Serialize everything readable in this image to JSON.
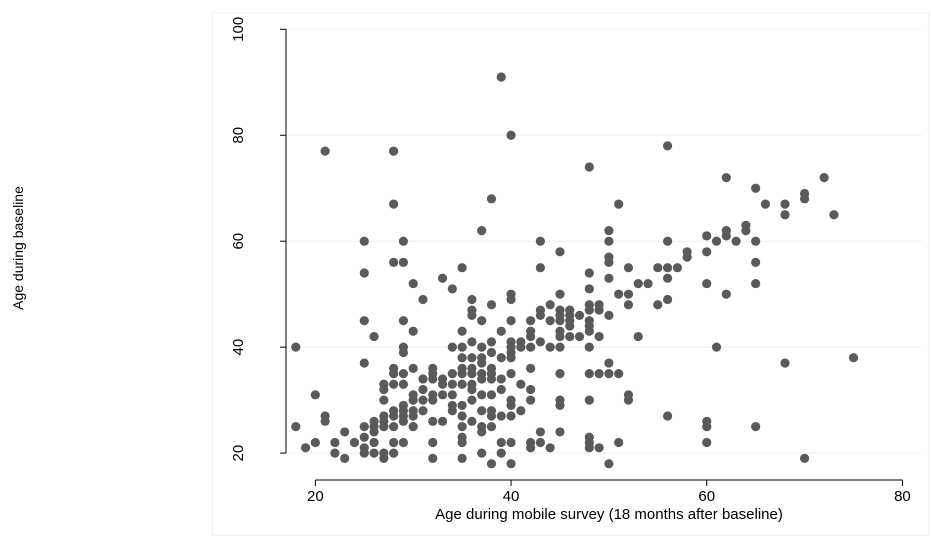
{
  "chart_data": {
    "type": "scatter",
    "title": "",
    "xlabel": "Age during mobile survey (18 months after baseline)",
    "ylabel": "Age during baseline",
    "xlim": [
      17,
      82
    ],
    "ylim": [
      17,
      101
    ],
    "xticks": [
      20,
      40,
      60,
      80
    ],
    "yticks": [
      20,
      40,
      60,
      80,
      100
    ],
    "grid": "horizontal",
    "legend": "none",
    "marker_color": "#5a5a5a",
    "grid_color": "#eaf2f3",
    "series": [
      {
        "points": [
          [
            18,
            40
          ],
          [
            18,
            25
          ],
          [
            19,
            21
          ],
          [
            20,
            31
          ],
          [
            20,
            22
          ],
          [
            21,
            77
          ],
          [
            21,
            27
          ],
          [
            21,
            26
          ],
          [
            22,
            22
          ],
          [
            22,
            20
          ],
          [
            23,
            24
          ],
          [
            23,
            19
          ],
          [
            24,
            22
          ],
          [
            25,
            60
          ],
          [
            25,
            54
          ],
          [
            25,
            45
          ],
          [
            25,
            37
          ],
          [
            25,
            25
          ],
          [
            25,
            23
          ],
          [
            25,
            21
          ],
          [
            25,
            20
          ],
          [
            26,
            42
          ],
          [
            26,
            26
          ],
          [
            26,
            25
          ],
          [
            26,
            24
          ],
          [
            26,
            22
          ],
          [
            26,
            20
          ],
          [
            27,
            33
          ],
          [
            27,
            32
          ],
          [
            27,
            30
          ],
          [
            27,
            27
          ],
          [
            27,
            26
          ],
          [
            27,
            25
          ],
          [
            27,
            20
          ],
          [
            27,
            19
          ],
          [
            28,
            77
          ],
          [
            28,
            67
          ],
          [
            28,
            56
          ],
          [
            28,
            36
          ],
          [
            28,
            35
          ],
          [
            28,
            33
          ],
          [
            28,
            28
          ],
          [
            28,
            27
          ],
          [
            28,
            25
          ],
          [
            28,
            22
          ],
          [
            28,
            20
          ],
          [
            29,
            60
          ],
          [
            29,
            56
          ],
          [
            29,
            45
          ],
          [
            29,
            40
          ],
          [
            29,
            39
          ],
          [
            29,
            35
          ],
          [
            29,
            33
          ],
          [
            29,
            29
          ],
          [
            29,
            28
          ],
          [
            29,
            27
          ],
          [
            29,
            26
          ],
          [
            29,
            22
          ],
          [
            30,
            52
          ],
          [
            30,
            43
          ],
          [
            30,
            36
          ],
          [
            30,
            31
          ],
          [
            30,
            30
          ],
          [
            30,
            28
          ],
          [
            30,
            27
          ],
          [
            30,
            25
          ],
          [
            31,
            49
          ],
          [
            31,
            34
          ],
          [
            31,
            32
          ],
          [
            31,
            30
          ],
          [
            31,
            28
          ],
          [
            32,
            36
          ],
          [
            32,
            35
          ],
          [
            32,
            34
          ],
          [
            32,
            31
          ],
          [
            32,
            30
          ],
          [
            32,
            26
          ],
          [
            32,
            22
          ],
          [
            32,
            19
          ],
          [
            33,
            53
          ],
          [
            33,
            34
          ],
          [
            33,
            33
          ],
          [
            33,
            31
          ],
          [
            33,
            26
          ],
          [
            34,
            51
          ],
          [
            34,
            40
          ],
          [
            34,
            35
          ],
          [
            34,
            33
          ],
          [
            34,
            31
          ],
          [
            34,
            29
          ],
          [
            34,
            28
          ],
          [
            35,
            55
          ],
          [
            35,
            43
          ],
          [
            35,
            40
          ],
          [
            35,
            38
          ],
          [
            35,
            36
          ],
          [
            35,
            35
          ],
          [
            35,
            33
          ],
          [
            35,
            29
          ],
          [
            35,
            27
          ],
          [
            35,
            25
          ],
          [
            35,
            23
          ],
          [
            35,
            22
          ],
          [
            35,
            19
          ],
          [
            36,
            49
          ],
          [
            36,
            47
          ],
          [
            36,
            46
          ],
          [
            36,
            41
          ],
          [
            36,
            38
          ],
          [
            36,
            36
          ],
          [
            36,
            35
          ],
          [
            36,
            33
          ],
          [
            36,
            32
          ],
          [
            36,
            30
          ],
          [
            36,
            26
          ],
          [
            37,
            62
          ],
          [
            37,
            45
          ],
          [
            37,
            40
          ],
          [
            37,
            38
          ],
          [
            37,
            37
          ],
          [
            37,
            35
          ],
          [
            37,
            34
          ],
          [
            37,
            31
          ],
          [
            37,
            28
          ],
          [
            37,
            25
          ],
          [
            37,
            24
          ],
          [
            37,
            20
          ],
          [
            38,
            68
          ],
          [
            38,
            48
          ],
          [
            38,
            41
          ],
          [
            38,
            39
          ],
          [
            38,
            36
          ],
          [
            38,
            35
          ],
          [
            38,
            34
          ],
          [
            38,
            31
          ],
          [
            38,
            28
          ],
          [
            38,
            27
          ],
          [
            38,
            25
          ],
          [
            38,
            18
          ],
          [
            39,
            91
          ],
          [
            39,
            43
          ],
          [
            39,
            38
          ],
          [
            39,
            34
          ],
          [
            39,
            32
          ],
          [
            39,
            27
          ],
          [
            39,
            22
          ],
          [
            39,
            20
          ],
          [
            40,
            80
          ],
          [
            40,
            50
          ],
          [
            40,
            49
          ],
          [
            40,
            45
          ],
          [
            40,
            41
          ],
          [
            40,
            40
          ],
          [
            40,
            39
          ],
          [
            40,
            38
          ],
          [
            40,
            35
          ],
          [
            40,
            30
          ],
          [
            40,
            29
          ],
          [
            40,
            27
          ],
          [
            40,
            22
          ],
          [
            40,
            18
          ],
          [
            41,
            41
          ],
          [
            41,
            40
          ],
          [
            41,
            33
          ],
          [
            41,
            28
          ],
          [
            42,
            45
          ],
          [
            42,
            43
          ],
          [
            42,
            42
          ],
          [
            42,
            40
          ],
          [
            42,
            36
          ],
          [
            42,
            32
          ],
          [
            42,
            30
          ],
          [
            42,
            22
          ],
          [
            42,
            21
          ],
          [
            43,
            60
          ],
          [
            43,
            55
          ],
          [
            43,
            47
          ],
          [
            43,
            46
          ],
          [
            43,
            41
          ],
          [
            43,
            24
          ],
          [
            43,
            22
          ],
          [
            44,
            48
          ],
          [
            44,
            45
          ],
          [
            44,
            40
          ],
          [
            44,
            21
          ],
          [
            45,
            58
          ],
          [
            45,
            50
          ],
          [
            45,
            47
          ],
          [
            45,
            46
          ],
          [
            45,
            45
          ],
          [
            45,
            43
          ],
          [
            45,
            42
          ],
          [
            45,
            40
          ],
          [
            45,
            35
          ],
          [
            45,
            30
          ],
          [
            45,
            29
          ],
          [
            45,
            24
          ],
          [
            46,
            47
          ],
          [
            46,
            46
          ],
          [
            46,
            45
          ],
          [
            46,
            44
          ],
          [
            46,
            42
          ],
          [
            47,
            46
          ],
          [
            47,
            42
          ],
          [
            48,
            74
          ],
          [
            48,
            54
          ],
          [
            48,
            51
          ],
          [
            48,
            48
          ],
          [
            48,
            47
          ],
          [
            48,
            45
          ],
          [
            48,
            44
          ],
          [
            48,
            43
          ],
          [
            48,
            40
          ],
          [
            48,
            35
          ],
          [
            48,
            30
          ],
          [
            48,
            23
          ],
          [
            48,
            22
          ],
          [
            48,
            21
          ],
          [
            49,
            48
          ],
          [
            49,
            47
          ],
          [
            49,
            42
          ],
          [
            49,
            35
          ],
          [
            49,
            21
          ],
          [
            50,
            62
          ],
          [
            50,
            60
          ],
          [
            50,
            57
          ],
          [
            50,
            56
          ],
          [
            50,
            53
          ],
          [
            50,
            46
          ],
          [
            50,
            37
          ],
          [
            50,
            35
          ],
          [
            50,
            18
          ],
          [
            51,
            67
          ],
          [
            51,
            50
          ],
          [
            51,
            35
          ],
          [
            51,
            22
          ],
          [
            52,
            55
          ],
          [
            52,
            50
          ],
          [
            52,
            48
          ],
          [
            52,
            31
          ],
          [
            52,
            30
          ],
          [
            53,
            52
          ],
          [
            53,
            42
          ],
          [
            54,
            52
          ],
          [
            55,
            55
          ],
          [
            55,
            48
          ],
          [
            56,
            78
          ],
          [
            56,
            60
          ],
          [
            56,
            55
          ],
          [
            56,
            53
          ],
          [
            56,
            49
          ],
          [
            56,
            27
          ],
          [
            57,
            55
          ],
          [
            58,
            58
          ],
          [
            58,
            57
          ],
          [
            60,
            61
          ],
          [
            60,
            58
          ],
          [
            60,
            52
          ],
          [
            60,
            26
          ],
          [
            60,
            25
          ],
          [
            60,
            22
          ],
          [
            61,
            60
          ],
          [
            61,
            40
          ],
          [
            62,
            72
          ],
          [
            62,
            62
          ],
          [
            62,
            61
          ],
          [
            62,
            50
          ],
          [
            63,
            60
          ],
          [
            64,
            63
          ],
          [
            64,
            62
          ],
          [
            65,
            70
          ],
          [
            65,
            60
          ],
          [
            65,
            56
          ],
          [
            65,
            52
          ],
          [
            65,
            25
          ],
          [
            66,
            67
          ],
          [
            68,
            67
          ],
          [
            68,
            65
          ],
          [
            68,
            37
          ],
          [
            70,
            69
          ],
          [
            70,
            68
          ],
          [
            70,
            19
          ],
          [
            72,
            72
          ],
          [
            73,
            65
          ],
          [
            75,
            38
          ]
        ]
      }
    ]
  }
}
